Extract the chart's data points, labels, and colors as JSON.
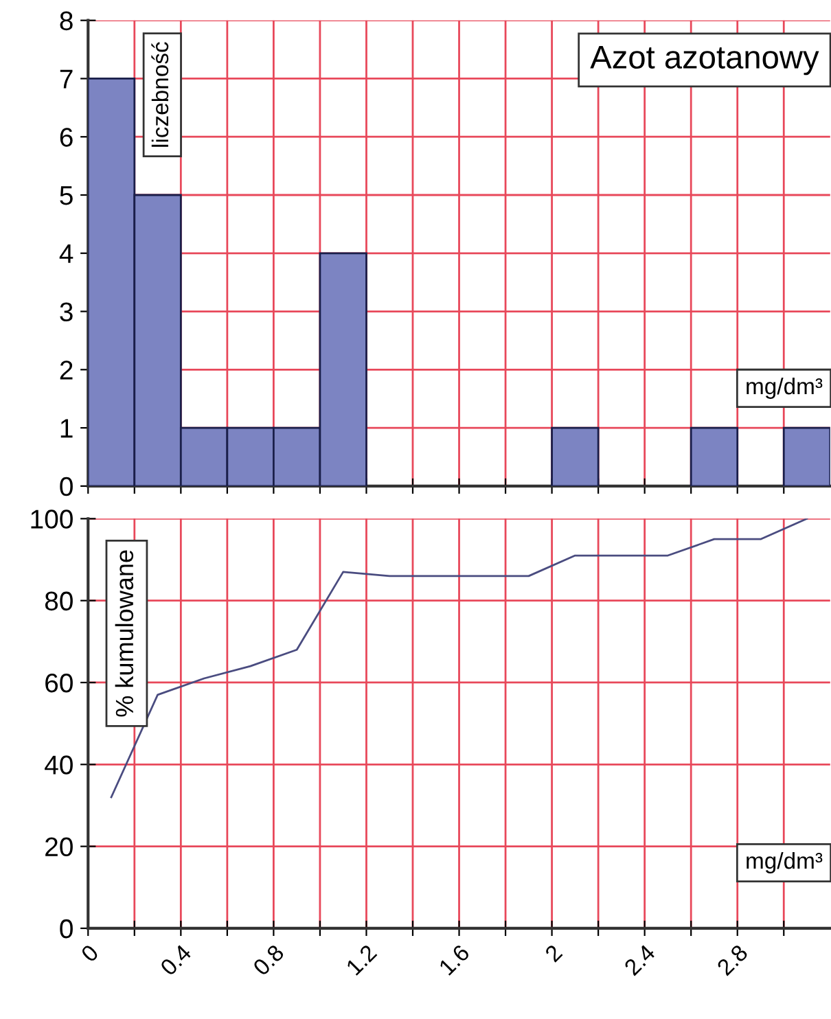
{
  "chart_data": [
    {
      "type": "histogram",
      "title": "Azot azotanowy",
      "ylabel": "liczebność",
      "xlabel": "mg/dm³",
      "bins": [
        0,
        0.2,
        0.4,
        0.6,
        0.8,
        1.0,
        1.2,
        1.4,
        1.6,
        1.8,
        2.0,
        2.2,
        2.4,
        2.6,
        2.8,
        3.0,
        3.2
      ],
      "values": [
        7,
        5,
        1,
        1,
        1,
        4,
        0,
        0,
        0,
        0,
        1,
        0,
        0,
        1,
        0,
        1
      ],
      "color": "#7c84c2",
      "xlim": [
        0,
        3.2
      ],
      "ylim": [
        0,
        8
      ],
      "yticks": [
        0,
        1,
        2,
        3,
        4,
        5,
        6,
        7,
        8
      ],
      "xticks": [
        {
          "value": 0,
          "label": null
        },
        {
          "value": 0.2,
          "label": null
        },
        {
          "value": 0.4,
          "label": null
        },
        {
          "value": 0.6,
          "label": null
        },
        {
          "value": 0.8,
          "label": null
        },
        {
          "value": 1.0,
          "label": null
        },
        {
          "value": 1.2,
          "label": null
        },
        {
          "value": 1.4,
          "label": null
        },
        {
          "value": 1.6,
          "label": null
        },
        {
          "value": 1.8,
          "label": null
        },
        {
          "value": 2.0,
          "label": null
        },
        {
          "value": 2.2,
          "label": null
        },
        {
          "value": 2.4,
          "label": null
        },
        {
          "value": 2.6,
          "label": null
        },
        {
          "value": 2.8,
          "label": null
        },
        {
          "value": 3.0,
          "label": null
        }
      ],
      "tick_labels": "y",
      "grid": true
    },
    {
      "type": "line",
      "ylabel": "% kumulowane",
      "xlabel": "mg/dm³",
      "x": [
        0.1,
        0.3,
        0.5,
        0.7,
        0.9,
        1.1,
        1.3,
        1.5,
        1.7,
        1.9,
        2.1,
        2.3,
        2.5,
        2.7,
        2.9,
        3.1
      ],
      "values": [
        32,
        57,
        61,
        64,
        68,
        87,
        86,
        86,
        86,
        86,
        91,
        91,
        91,
        95,
        95,
        100
      ],
      "color": "#4a4c80",
      "marker": "none",
      "line_style": "solid",
      "xlim": [
        0,
        3.2
      ],
      "ylim": [
        0,
        100
      ],
      "yticks": [
        0,
        20,
        40,
        60,
        80,
        100
      ],
      "xticks": [
        0,
        {
          "value": 0.2,
          "label": null
        },
        0.4,
        {
          "value": 0.6,
          "label": null
        },
        0.8,
        {
          "value": 1.0,
          "label": null
        },
        1.2,
        {
          "value": 1.4,
          "label": null
        },
        1.6,
        {
          "value": 1.8,
          "label": null
        },
        2,
        {
          "value": 2.2,
          "label": null
        },
        2.4,
        {
          "value": 2.6,
          "label": null
        },
        2.8,
        {
          "value": 3.0,
          "label": null
        }
      ],
      "grid": true
    }
  ]
}
